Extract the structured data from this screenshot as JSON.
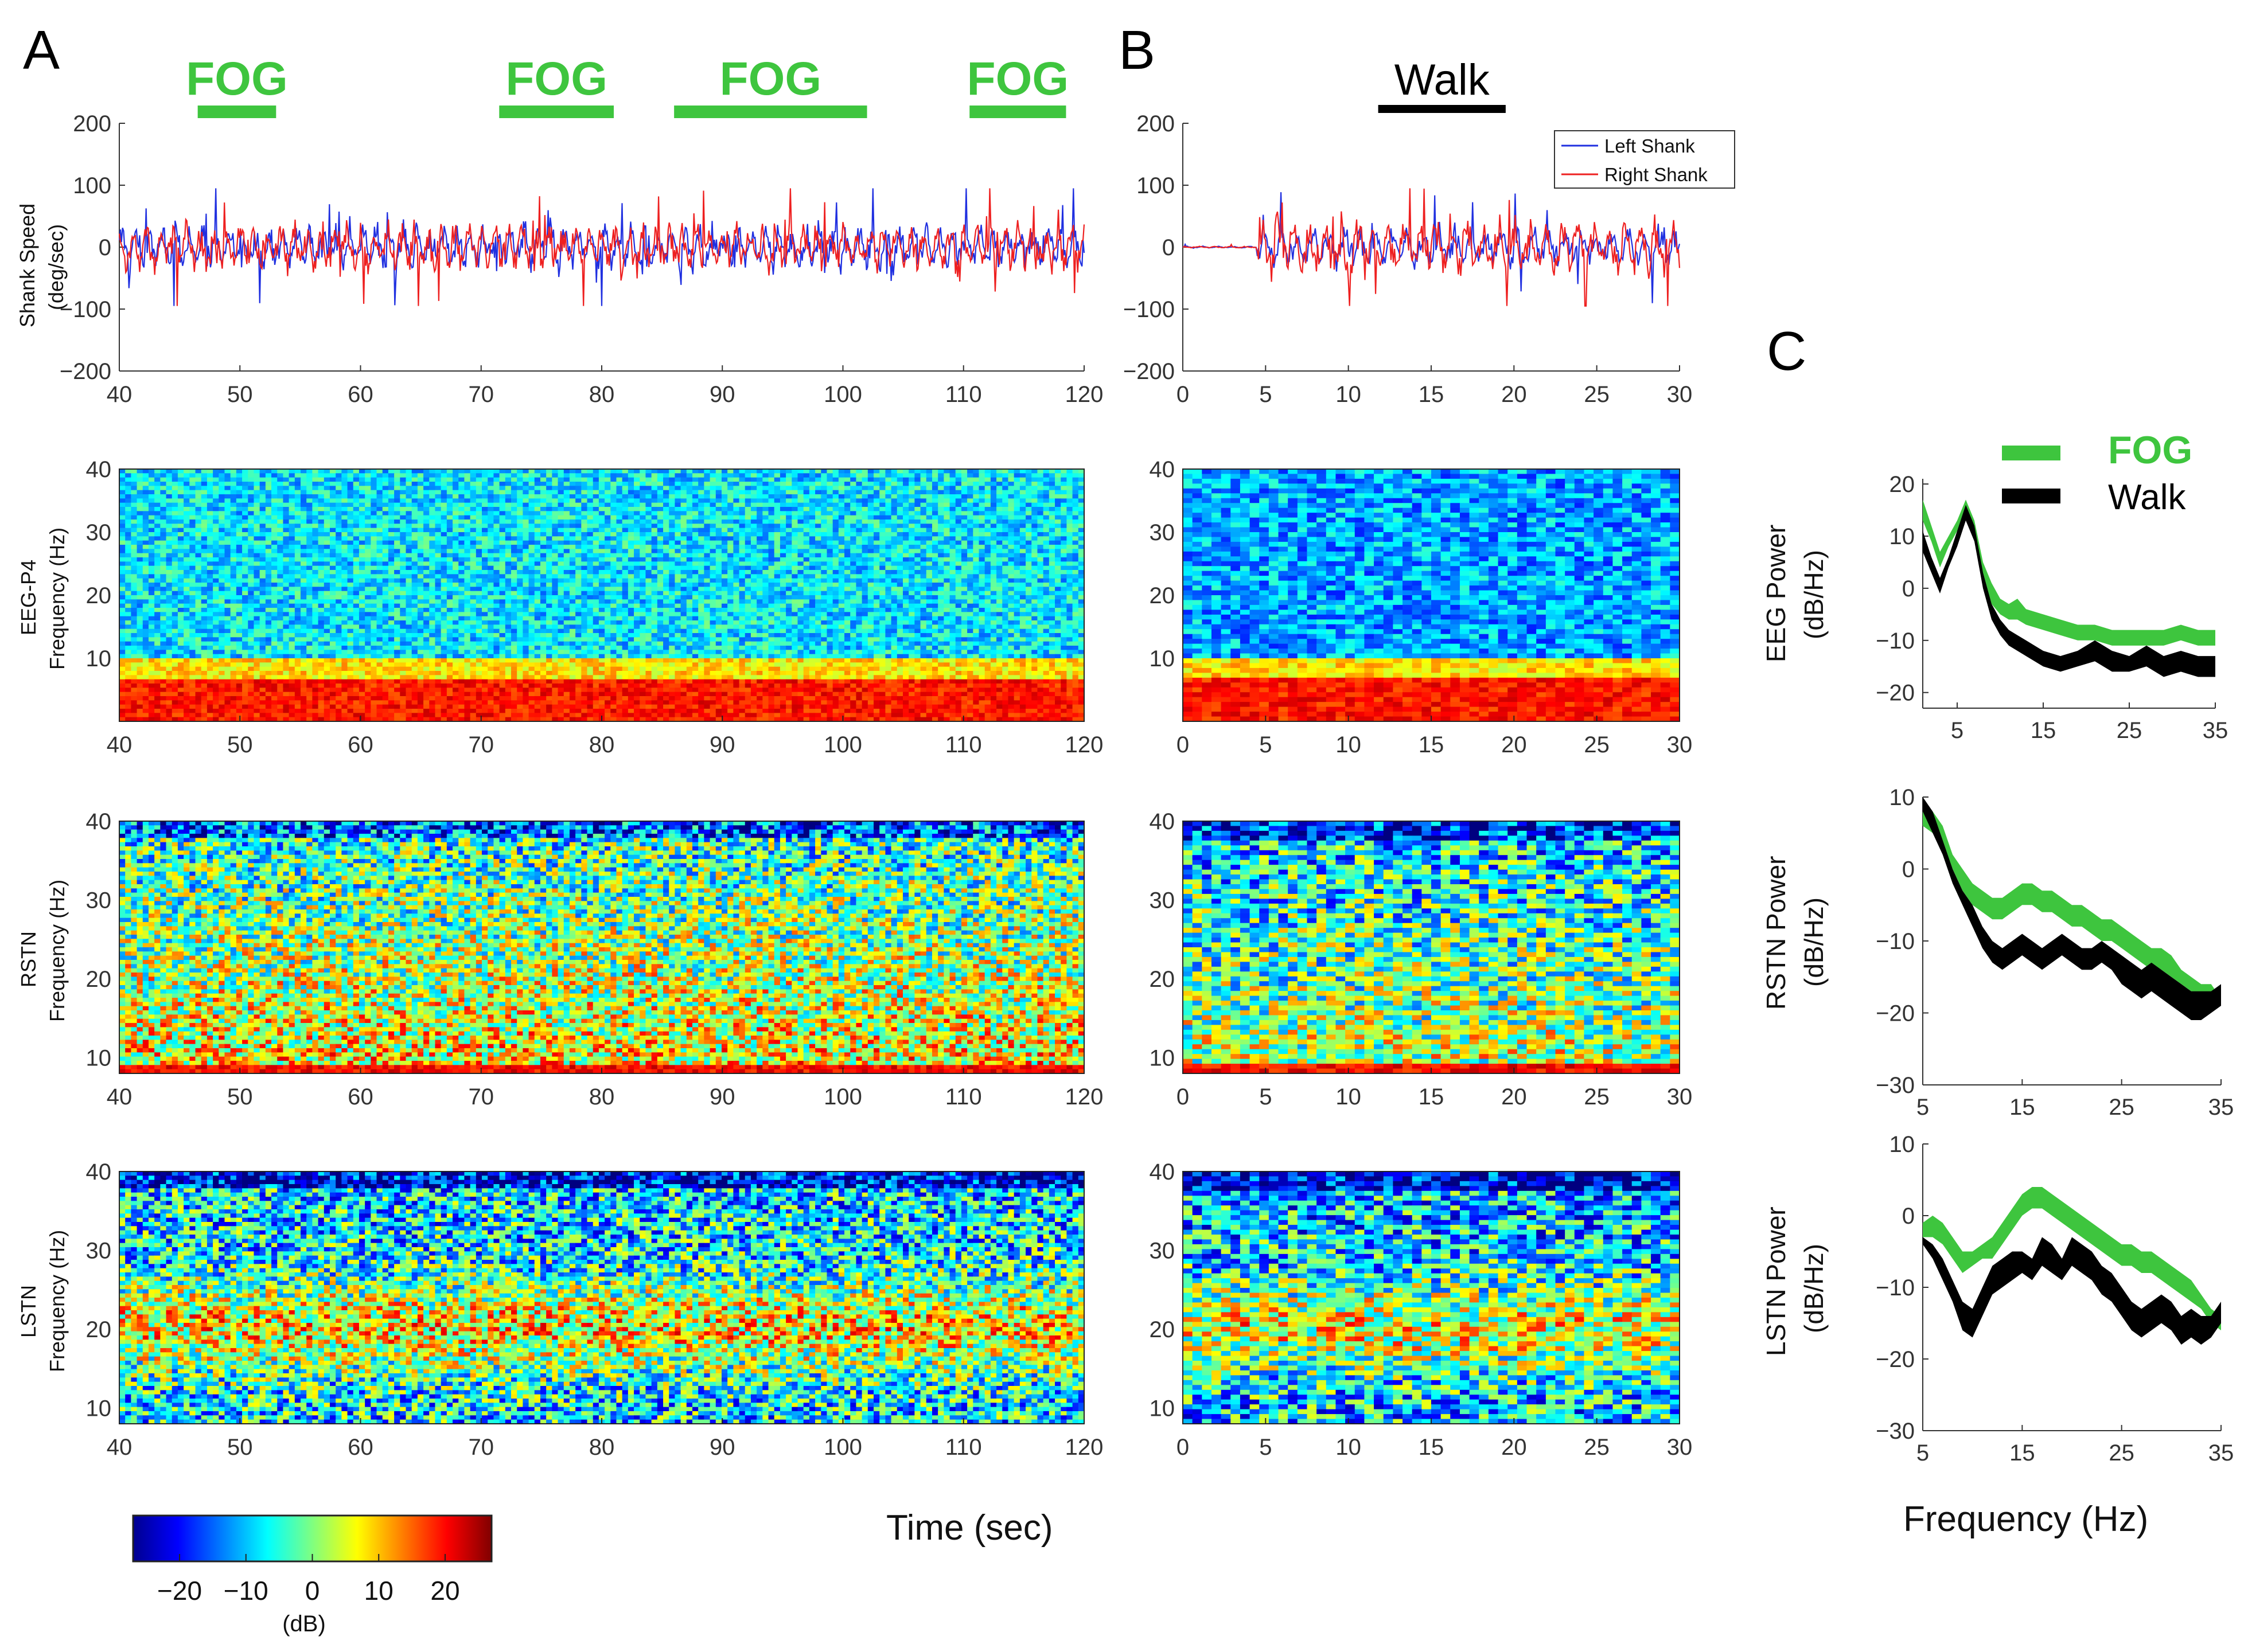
{
  "panel_labels": {
    "A": "A",
    "B": "B",
    "C": "C"
  },
  "panel_a_events": {
    "label": "FOG",
    "intervals_sec": [
      [
        46.5,
        53
      ],
      [
        71.5,
        81
      ],
      [
        86,
        102
      ],
      [
        110.5,
        118.5
      ]
    ]
  },
  "panel_b_events": {
    "label": "Walk",
    "intervals_sec": [
      [
        11.8,
        19.5
      ]
    ]
  },
  "shank_legend": {
    "left": "Left Shank",
    "right": "Right Shank"
  },
  "colorbar": {
    "ticks": [
      "−20",
      "−10",
      "0",
      "10",
      "20"
    ],
    "values": [
      -20,
      -10,
      0,
      10,
      20
    ],
    "range": [
      -27,
      27
    ],
    "unit": "(dB)"
  },
  "time_label": "Time (sec)",
  "freq_label": "Frequency (Hz)",
  "colors": {
    "left_shank": "#2030e0",
    "right_shank": "#ee2020",
    "fog": "#3ec53e",
    "walk": "#000000"
  },
  "chart_data": [
    {
      "id": "A-shank",
      "type": "line",
      "ylabel": "Shank Speed",
      "ylabel2": "(deg/sec)",
      "xlim": [
        40,
        120
      ],
      "ylim": [
        -200,
        200
      ],
      "xticks": [
        "40",
        "50",
        "60",
        "70",
        "80",
        "90",
        "100",
        "110",
        "120"
      ],
      "yticks": [
        "200",
        "100",
        "0",
        "−100",
        "−200"
      ],
      "series": [
        {
          "name": "Left Shank",
          "amplitude": 55
        },
        {
          "name": "Right Shank",
          "amplitude": 60
        }
      ]
    },
    {
      "id": "B-shank",
      "type": "line",
      "xlim": [
        0,
        30
      ],
      "ylim": [
        -200,
        200
      ],
      "xticks": [
        "0",
        "5",
        "10",
        "15",
        "20",
        "25",
        "30"
      ],
      "yticks": [
        "200",
        "100",
        "0",
        "−100",
        "−200"
      ],
      "series": [
        {
          "name": "Left Shank",
          "amplitude": 45
        },
        {
          "name": "Right Shank",
          "amplitude": 70
        }
      ]
    },
    {
      "id": "A-eeg",
      "type": "heatmap",
      "ylabel": "EEG-P4",
      "ylabel2": "Frequency (Hz)",
      "xlim": [
        40,
        120
      ],
      "ylim": [
        0,
        40
      ],
      "xticks": [
        "40",
        "50",
        "60",
        "70",
        "80",
        "90",
        "100",
        "110",
        "120"
      ],
      "yticks": [
        "40",
        "30",
        "20",
        "10"
      ],
      "pattern": "eeg"
    },
    {
      "id": "B-eeg",
      "type": "heatmap",
      "xlim": [
        0,
        30
      ],
      "ylim": [
        0,
        40
      ],
      "xticks": [
        "0",
        "5",
        "10",
        "15",
        "20",
        "25",
        "30"
      ],
      "yticks": [
        "40",
        "30",
        "20",
        "10"
      ],
      "pattern": "eeg"
    },
    {
      "id": "A-rstn",
      "type": "heatmap",
      "ylabel": "RSTN",
      "ylabel2": "Frequency (Hz)",
      "xlim": [
        40,
        120
      ],
      "ylim": [
        8,
        40
      ],
      "xticks": [
        "40",
        "50",
        "60",
        "70",
        "80",
        "90",
        "100",
        "110",
        "120"
      ],
      "yticks": [
        "40",
        "30",
        "20",
        "10"
      ],
      "pattern": "rstn"
    },
    {
      "id": "B-rstn",
      "type": "heatmap",
      "xlim": [
        0,
        30
      ],
      "ylim": [
        8,
        40
      ],
      "xticks": [
        "0",
        "5",
        "10",
        "15",
        "20",
        "25",
        "30"
      ],
      "yticks": [
        "40",
        "30",
        "20",
        "10"
      ],
      "pattern": "rstn"
    },
    {
      "id": "A-lstn",
      "type": "heatmap",
      "ylabel": "LSTN",
      "ylabel2": "Frequency (Hz)",
      "xlim": [
        40,
        120
      ],
      "ylim": [
        8,
        40
      ],
      "xticks": [
        "40",
        "50",
        "60",
        "70",
        "80",
        "90",
        "100",
        "110",
        "120"
      ],
      "yticks": [
        "40",
        "30",
        "20",
        "10"
      ],
      "pattern": "lstn"
    },
    {
      "id": "B-lstn",
      "type": "heatmap",
      "xlim": [
        0,
        30
      ],
      "ylim": [
        8,
        40
      ],
      "xticks": [
        "0",
        "5",
        "10",
        "15",
        "20",
        "25",
        "30"
      ],
      "yticks": [
        "40",
        "30",
        "20",
        "10"
      ],
      "pattern": "lstn"
    },
    {
      "id": "C-eeg",
      "type": "area",
      "ylabel": "EEG  Power",
      "ylabel2": "(dB/Hz)",
      "xlim": [
        1,
        35
      ],
      "ylim": [
        -23,
        21
      ],
      "xticks": [
        "5",
        "15",
        "25",
        "35"
      ],
      "yticks": [
        "20",
        "10",
        "0",
        "−10",
        "−20"
      ],
      "series": [
        {
          "name": "FOG",
          "x": [
            1,
            2,
            3,
            4,
            5,
            6,
            7,
            8,
            9,
            10,
            11,
            12,
            13,
            15,
            17,
            19,
            21,
            23,
            25,
            27,
            29,
            31,
            33,
            35
          ],
          "lower": [
            13,
            9,
            4,
            8,
            11,
            15,
            11,
            2,
            -3,
            -5,
            -6,
            -6,
            -7,
            -8,
            -9,
            -10,
            -10,
            -11,
            -11,
            -11,
            -11,
            -10,
            -11,
            -11
          ],
          "upper": [
            17,
            12,
            7,
            10,
            13,
            17,
            13,
            5,
            1,
            -2,
            -3,
            -2,
            -4,
            -5,
            -6,
            -7,
            -7,
            -8,
            -8,
            -8,
            -8,
            -7,
            -8,
            -8
          ]
        },
        {
          "name": "Walk",
          "x": [
            1,
            2,
            3,
            4,
            5,
            6,
            7,
            8,
            9,
            10,
            11,
            12,
            13,
            15,
            17,
            19,
            21,
            23,
            25,
            27,
            29,
            31,
            33,
            35
          ],
          "lower": [
            7,
            3,
            -1,
            4,
            8,
            13,
            9,
            0,
            -6,
            -9,
            -11,
            -12,
            -13,
            -15,
            -16,
            -15,
            -14,
            -16,
            -16,
            -15,
            -17,
            -16,
            -17,
            -17
          ],
          "upper": [
            11,
            6,
            2,
            6,
            11,
            16,
            12,
            3,
            -3,
            -6,
            -8,
            -9,
            -10,
            -12,
            -13,
            -12,
            -10,
            -12,
            -13,
            -11,
            -13,
            -12,
            -13,
            -13
          ]
        }
      ]
    },
    {
      "id": "C-rstn",
      "type": "area",
      "ylabel": "RSTN  Power",
      "ylabel2": "(dB/Hz)",
      "xlim": [
        5,
        35
      ],
      "ylim": [
        -30,
        10
      ],
      "xticks": [
        "5",
        "15",
        "25",
        "35"
      ],
      "yticks": [
        "10",
        "0",
        "−10",
        "−20",
        "−30"
      ],
      "series": [
        {
          "name": "FOG",
          "x": [
            5,
            6,
            7,
            8,
            9,
            10,
            11,
            12,
            13,
            14,
            15,
            16,
            17,
            18,
            19,
            20,
            21,
            22,
            23,
            24,
            25,
            26,
            27,
            28,
            29,
            30,
            31,
            32,
            33,
            34,
            35
          ],
          "lower": [
            6,
            5,
            3,
            0,
            -3,
            -5,
            -6,
            -7,
            -7,
            -6,
            -5,
            -5,
            -6,
            -6,
            -7,
            -8,
            -8,
            -9,
            -10,
            -10,
            -11,
            -12,
            -13,
            -14,
            -14,
            -15,
            -16,
            -17,
            -18,
            -18,
            -19
          ],
          "upper": [
            8,
            8,
            6,
            2,
            0,
            -2,
            -3,
            -4,
            -4,
            -3,
            -2,
            -2,
            -3,
            -3,
            -4,
            -5,
            -5,
            -6,
            -7,
            -7,
            -8,
            -9,
            -10,
            -11,
            -11,
            -12,
            -14,
            -15,
            -16,
            -16,
            -18
          ]
        },
        {
          "name": "Walk",
          "x": [
            5,
            6,
            7,
            8,
            9,
            10,
            11,
            12,
            13,
            14,
            15,
            16,
            17,
            18,
            19,
            20,
            21,
            22,
            23,
            24,
            25,
            26,
            27,
            28,
            29,
            30,
            31,
            32,
            33,
            34,
            35
          ],
          "lower": [
            8,
            5,
            2,
            -2,
            -5,
            -8,
            -11,
            -13,
            -14,
            -13,
            -12,
            -13,
            -14,
            -13,
            -12,
            -13,
            -14,
            -14,
            -13,
            -14,
            -16,
            -17,
            -18,
            -17,
            -18,
            -19,
            -20,
            -21,
            -21,
            -20,
            -19
          ],
          "upper": [
            10,
            8,
            4,
            0,
            -3,
            -5,
            -8,
            -10,
            -11,
            -10,
            -9,
            -10,
            -11,
            -10,
            -9,
            -10,
            -11,
            -11,
            -10,
            -11,
            -12,
            -13,
            -14,
            -13,
            -14,
            -15,
            -16,
            -17,
            -17,
            -17,
            -16
          ]
        }
      ]
    },
    {
      "id": "C-lstn",
      "type": "area",
      "ylabel": "LSTN  Power",
      "ylabel2": "(dB/Hz)",
      "xlim": [
        5,
        35
      ],
      "ylim": [
        -30,
        10
      ],
      "xticks": [
        "5",
        "15",
        "25",
        "35"
      ],
      "yticks": [
        "10",
        "0",
        "−10",
        "−20",
        "−30"
      ],
      "series": [
        {
          "name": "FOG",
          "x": [
            5,
            6,
            7,
            8,
            9,
            10,
            11,
            12,
            13,
            14,
            15,
            16,
            17,
            18,
            19,
            20,
            21,
            22,
            23,
            24,
            25,
            26,
            27,
            28,
            29,
            30,
            31,
            32,
            33,
            34,
            35
          ],
          "lower": [
            -3,
            -3,
            -4,
            -6,
            -8,
            -7,
            -6,
            -6,
            -4,
            -2,
            0,
            1,
            1,
            0,
            -1,
            -2,
            -3,
            -4,
            -5,
            -6,
            -7,
            -7,
            -8,
            -8,
            -9,
            -10,
            -11,
            -12,
            -13,
            -15,
            -16
          ],
          "upper": [
            -1,
            0,
            -1,
            -3,
            -5,
            -5,
            -4,
            -3,
            -1,
            1,
            3,
            4,
            4,
            3,
            2,
            1,
            0,
            -1,
            -2,
            -3,
            -4,
            -4,
            -5,
            -5,
            -6,
            -7,
            -8,
            -9,
            -11,
            -13,
            -14
          ]
        },
        {
          "name": "Walk",
          "x": [
            5,
            6,
            7,
            8,
            9,
            10,
            11,
            12,
            13,
            14,
            15,
            16,
            17,
            18,
            19,
            20,
            21,
            22,
            23,
            24,
            25,
            26,
            27,
            28,
            29,
            30,
            31,
            32,
            33,
            34,
            35
          ],
          "lower": [
            -4,
            -6,
            -9,
            -12,
            -16,
            -17,
            -14,
            -11,
            -10,
            -9,
            -8,
            -9,
            -7,
            -8,
            -9,
            -7,
            -8,
            -9,
            -11,
            -12,
            -14,
            -16,
            -17,
            -16,
            -15,
            -16,
            -18,
            -17,
            -18,
            -17,
            -15
          ],
          "upper": [
            -3,
            -4,
            -6,
            -9,
            -12,
            -13,
            -10,
            -7,
            -6,
            -5,
            -5,
            -6,
            -3,
            -4,
            -6,
            -3,
            -4,
            -5,
            -7,
            -8,
            -10,
            -12,
            -13,
            -12,
            -11,
            -12,
            -14,
            -13,
            -14,
            -14,
            -12
          ]
        }
      ]
    }
  ],
  "c_legend": {
    "fog": "FOG",
    "walk": "Walk"
  }
}
